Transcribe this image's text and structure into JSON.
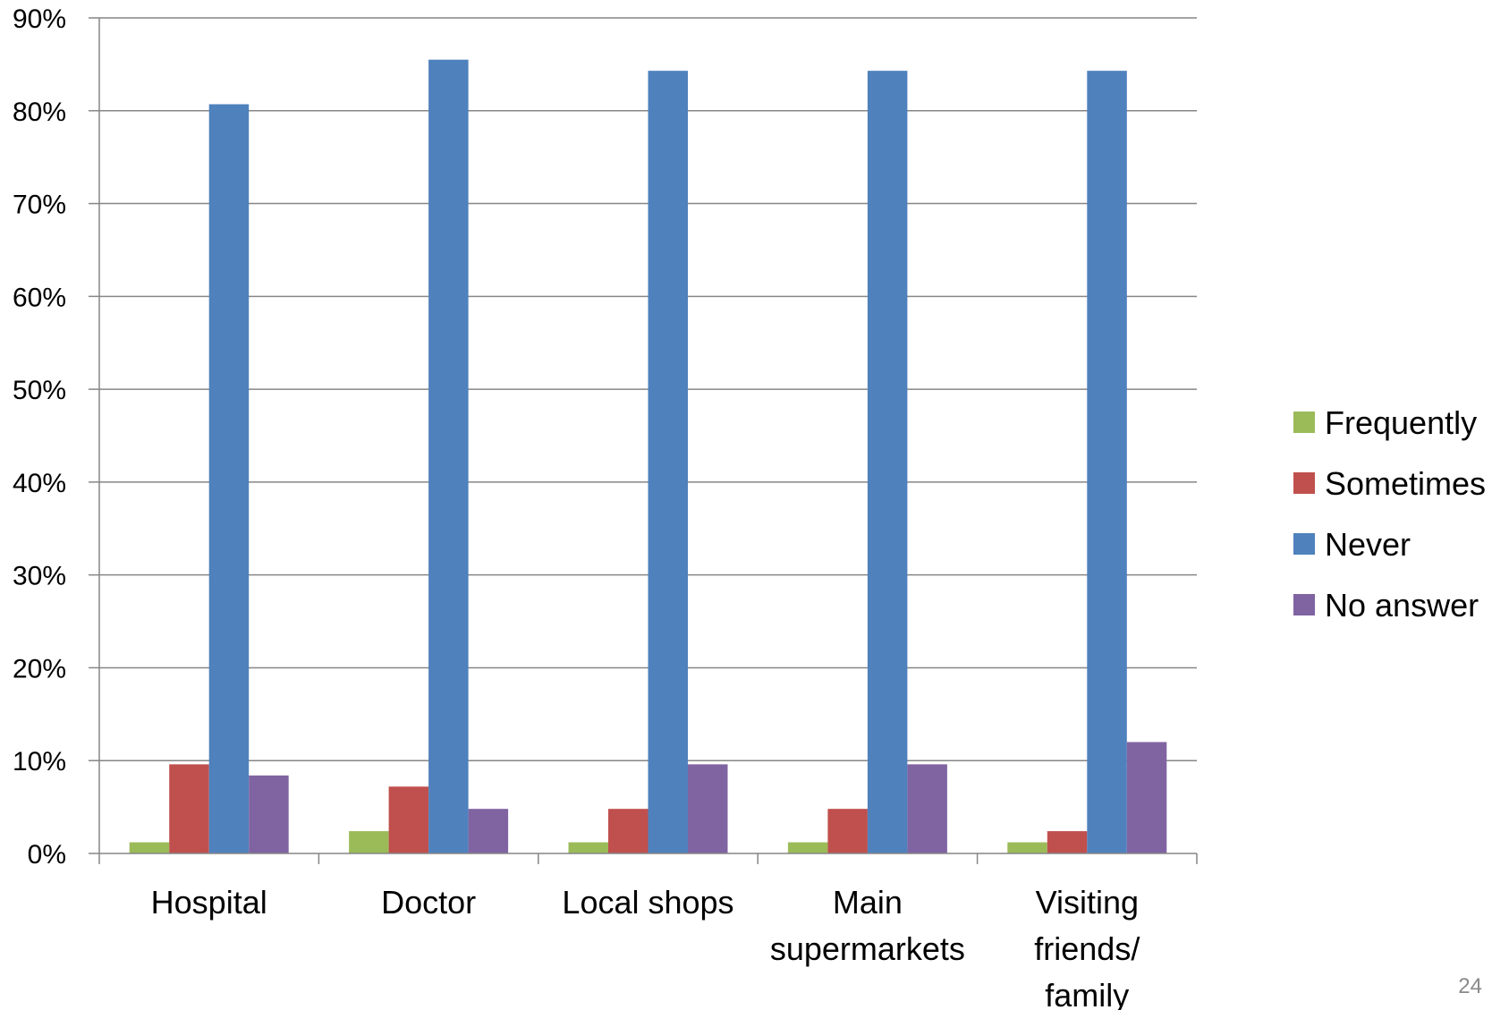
{
  "page_number": "24",
  "colors": {
    "Frequently": "#9BBB59",
    "Sometimes": "#C0504D",
    "Never": "#4F81BD",
    "No answer": "#8064A2",
    "gridline": "#868686",
    "axis": "#868686"
  },
  "chart_data": {
    "type": "bar",
    "title": "",
    "xlabel": "",
    "ylabel": "",
    "ylim": [
      0,
      90
    ],
    "yticks": [
      "0%",
      "10%",
      "20%",
      "30%",
      "40%",
      "50%",
      "60%",
      "70%",
      "80%",
      "90%"
    ],
    "grid": true,
    "legend_position": "right",
    "categories": [
      [
        "Hospital"
      ],
      [
        "Doctor"
      ],
      [
        "Local shops"
      ],
      [
        "Main",
        "supermarkets"
      ],
      [
        "Visiting",
        "friends/",
        "family"
      ]
    ],
    "series": [
      {
        "name": "Frequently",
        "values": [
          1.2,
          2.4,
          1.2,
          1.2,
          1.2
        ]
      },
      {
        "name": "Sometimes",
        "values": [
          9.6,
          7.2,
          4.8,
          4.8,
          2.4
        ]
      },
      {
        "name": "Never",
        "values": [
          80.7,
          85.5,
          84.3,
          84.3,
          84.3
        ]
      },
      {
        "name": "No answer",
        "values": [
          8.4,
          4.8,
          9.6,
          9.6,
          12.0
        ]
      }
    ]
  }
}
